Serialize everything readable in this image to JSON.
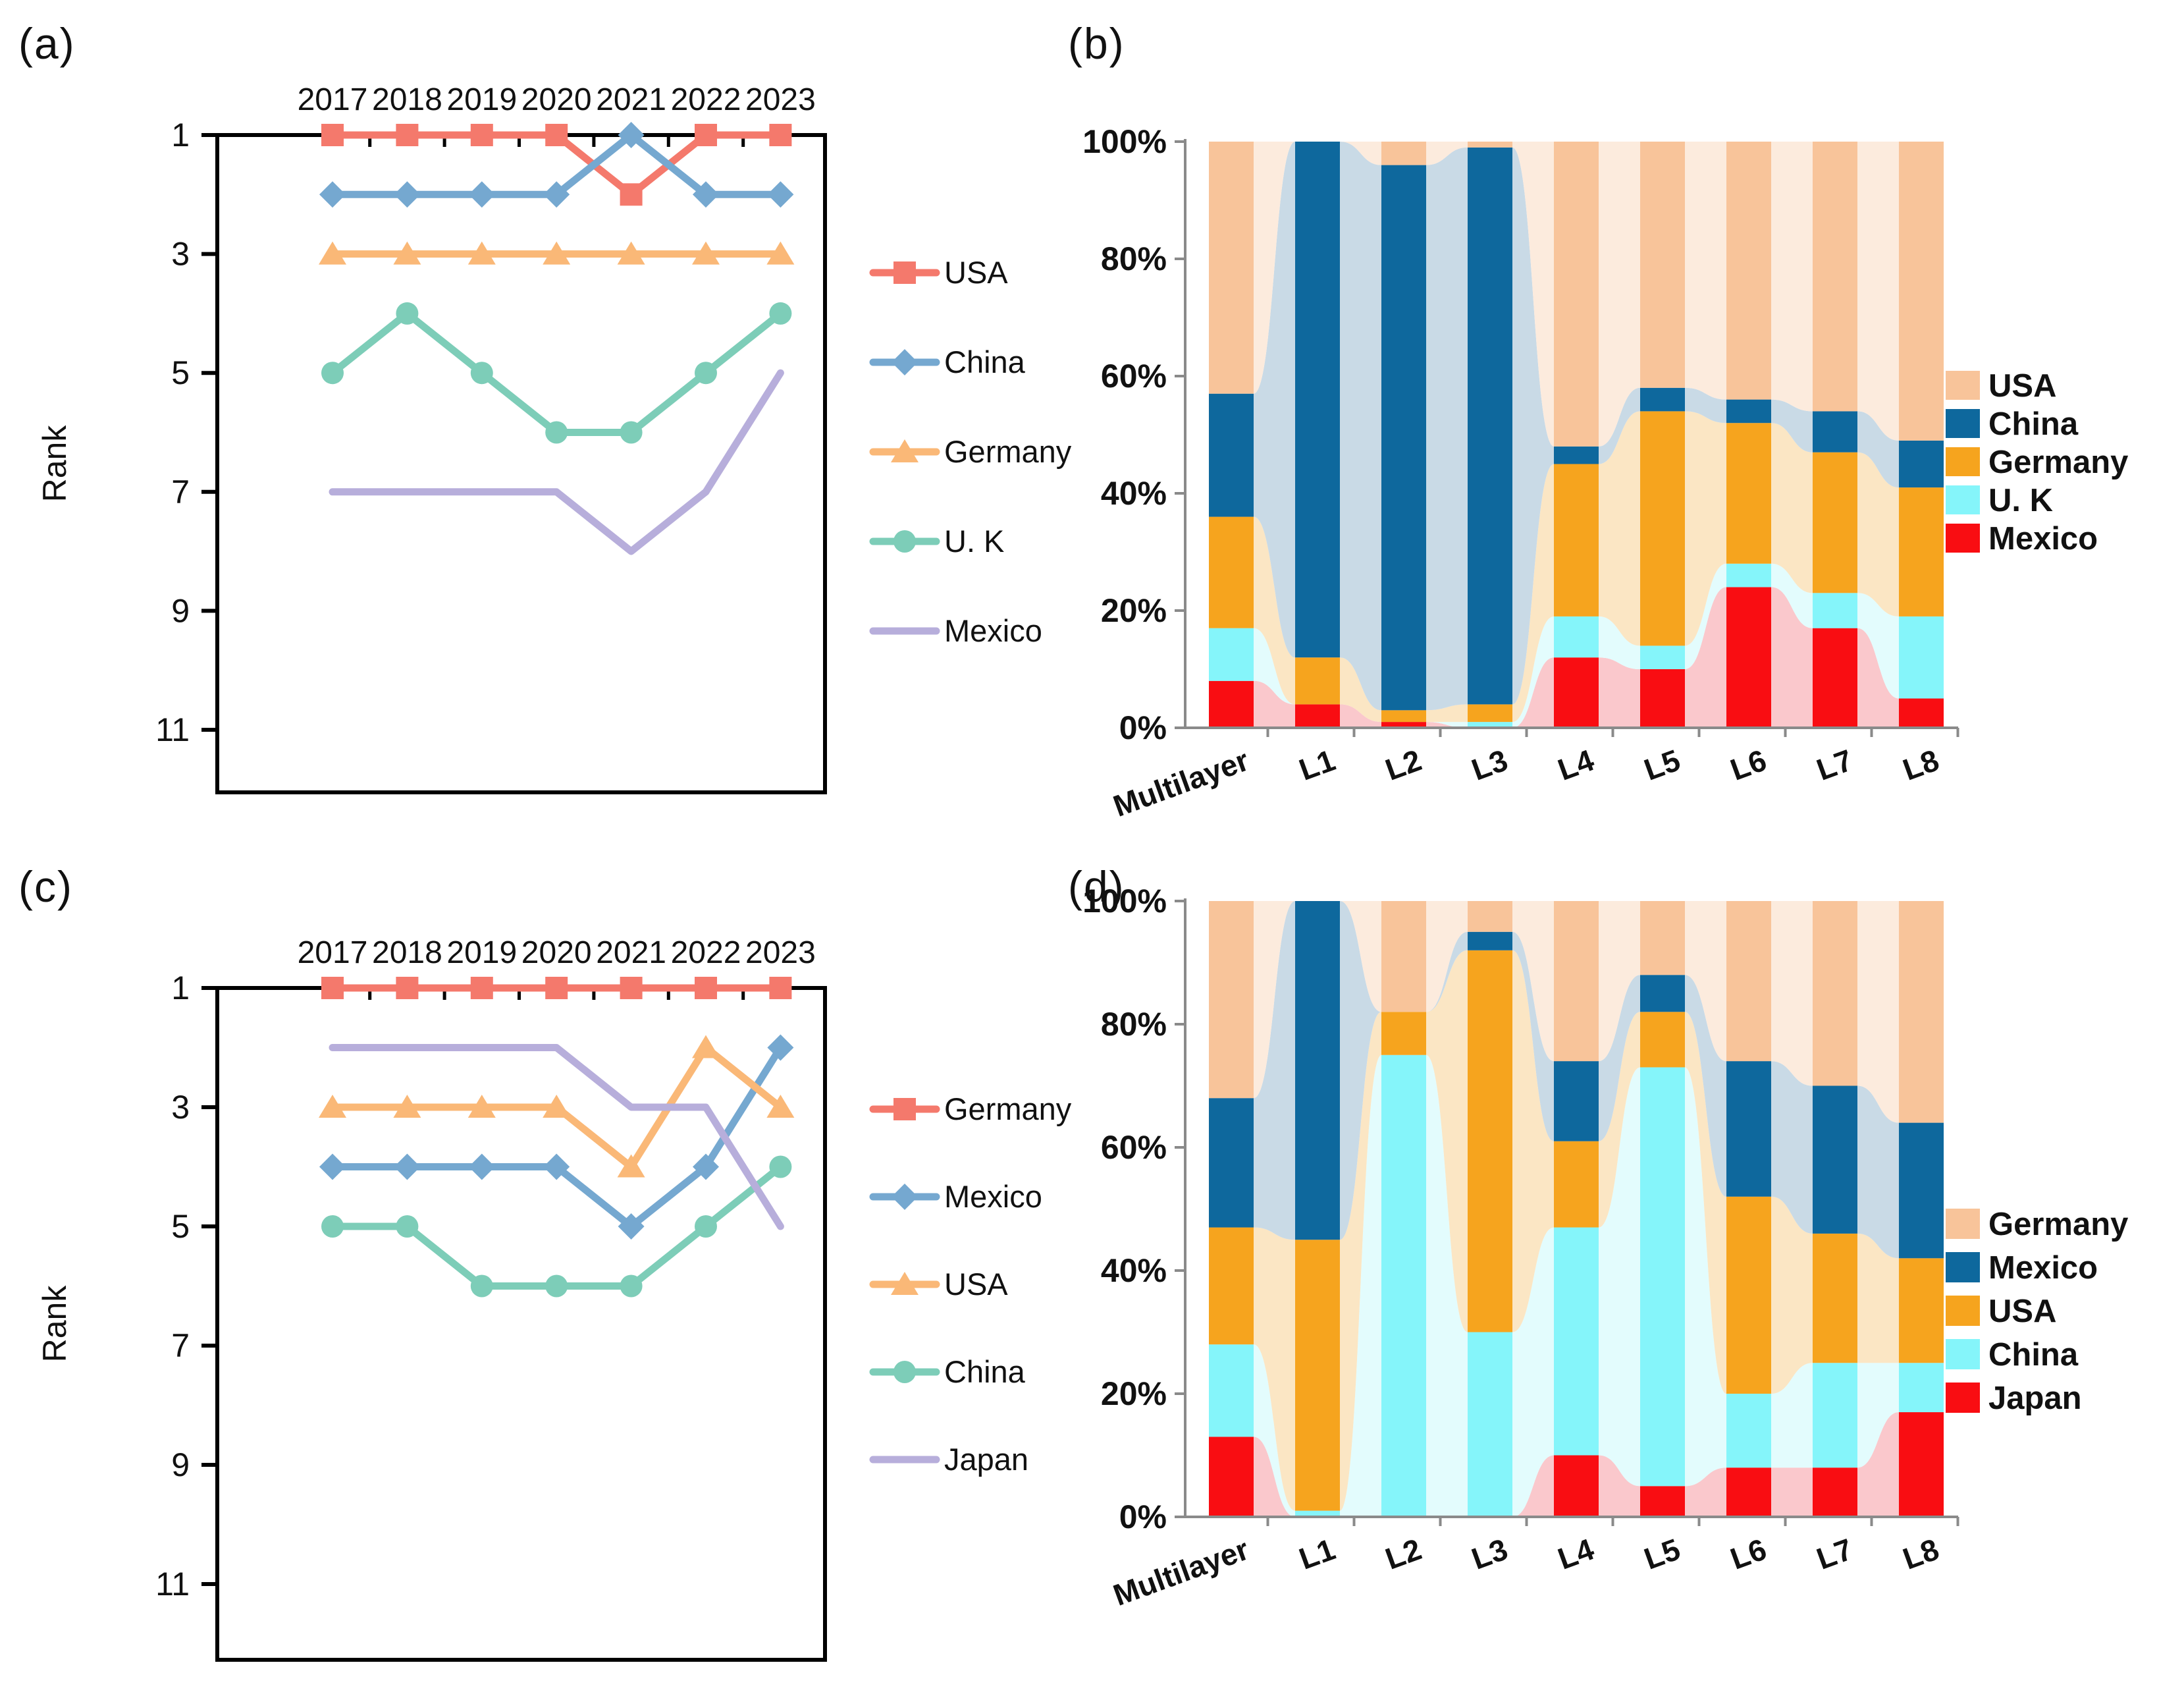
{
  "chart_data": [
    {
      "id": "a",
      "label": "(a)",
      "type": "line",
      "ylabel": "Rank",
      "x": [
        "2017",
        "2018",
        "2019",
        "2020",
        "2021",
        "2022",
        "2023"
      ],
      "yticks": [
        1,
        3,
        5,
        7,
        9,
        11
      ],
      "ylim": [
        1,
        12
      ],
      "y_inverted": true,
      "grid": false,
      "legend_position": "right",
      "series": [
        {
          "name": "USA",
          "color": "#F4796C",
          "marker": "square",
          "values": [
            1,
            1,
            1,
            1,
            2,
            1,
            1
          ]
        },
        {
          "name": "China",
          "color": "#75A8D0",
          "marker": "diamond",
          "values": [
            2,
            2,
            2,
            2,
            1,
            2,
            2
          ]
        },
        {
          "name": "Germany",
          "color": "#FAB877",
          "marker": "triangle",
          "values": [
            3,
            3,
            3,
            3,
            3,
            3,
            3
          ]
        },
        {
          "name": "U. K",
          "color": "#7DCDB8",
          "marker": "circle",
          "values": [
            5,
            4,
            5,
            6,
            6,
            5,
            4
          ]
        },
        {
          "name": "Mexico",
          "color": "#B7AEDB",
          "marker": "none",
          "values": [
            7,
            7,
            7,
            7,
            8,
            7,
            5
          ]
        }
      ]
    },
    {
      "id": "b",
      "label": "(b)",
      "type": "stacked-bar-flow",
      "unit": "%",
      "stack": "percent",
      "ylim": [
        0,
        100
      ],
      "yticks": [
        "100%",
        "80%",
        "60%",
        "40%",
        "20%",
        "0%"
      ],
      "categories": [
        "Multilayer",
        "L1",
        "L2",
        "L3",
        "L4",
        "L5",
        "L6",
        "L7",
        "L8"
      ],
      "legend_position": "right",
      "series": [
        {
          "name": "USA",
          "color": "#F8C49A",
          "flow_color": "#FCEBDD",
          "values": [
            43,
            0,
            4,
            1,
            52,
            42,
            44,
            46,
            51
          ]
        },
        {
          "name": "China",
          "color": "#0E689D",
          "flow_color": "#C9DAE6",
          "values": [
            21,
            88,
            93,
            95,
            3,
            4,
            4,
            7,
            8
          ]
        },
        {
          "name": "Germany",
          "color": "#F6A41E",
          "flow_color": "#FBE6C4",
          "values": [
            19,
            8,
            2,
            3,
            26,
            40,
            24,
            24,
            22
          ]
        },
        {
          "name": "U. K",
          "color": "#85F5FA",
          "flow_color": "#E3FCFD",
          "values": [
            9,
            0,
            0,
            1,
            7,
            4,
            4,
            6,
            14
          ]
        },
        {
          "name": "Mexico",
          "color": "#F90D12",
          "flow_color": "#FAC8CC",
          "values": [
            8,
            4,
            1,
            0,
            12,
            10,
            24,
            17,
            5
          ]
        }
      ]
    },
    {
      "id": "c",
      "label": "(c)",
      "type": "line",
      "ylabel": "Rank",
      "x": [
        "2017",
        "2018",
        "2019",
        "2020",
        "2021",
        "2022",
        "2023"
      ],
      "yticks": [
        1,
        3,
        5,
        7,
        9,
        11
      ],
      "ylim": [
        1,
        12
      ],
      "y_inverted": true,
      "grid": false,
      "legend_position": "right",
      "series": [
        {
          "name": "Germany",
          "color": "#F4796C",
          "marker": "square",
          "values": [
            1,
            1,
            1,
            1,
            1,
            1,
            1
          ]
        },
        {
          "name": "Mexico",
          "color": "#75A8D0",
          "marker": "diamond",
          "values": [
            4,
            4,
            4,
            4,
            5,
            4,
            2
          ]
        },
        {
          "name": "USA",
          "color": "#FAB877",
          "marker": "triangle",
          "values": [
            3,
            3,
            3,
            3,
            4,
            2,
            3
          ]
        },
        {
          "name": "China",
          "color": "#7DCDB8",
          "marker": "circle",
          "values": [
            5,
            5,
            6,
            6,
            6,
            5,
            4
          ]
        },
        {
          "name": "Japan",
          "color": "#B7AEDB",
          "marker": "none",
          "values": [
            2,
            2,
            2,
            2,
            3,
            3,
            5
          ]
        }
      ]
    },
    {
      "id": "d",
      "label": "(d)",
      "type": "stacked-bar-flow",
      "unit": "%",
      "stack": "percent",
      "ylim": [
        0,
        100
      ],
      "yticks": [
        "100%",
        "80%",
        "60%",
        "40%",
        "20%",
        "0%"
      ],
      "categories": [
        "Multilayer",
        "L1",
        "L2",
        "L3",
        "L4",
        "L5",
        "L6",
        "L7",
        "L8"
      ],
      "legend_position": "right",
      "series": [
        {
          "name": "Germany",
          "color": "#F8C49A",
          "flow_color": "#FCEBDD",
          "values": [
            32,
            0,
            18,
            5,
            26,
            12,
            26,
            30,
            36
          ]
        },
        {
          "name": "Mexico",
          "color": "#0E689D",
          "flow_color": "#C9DAE6",
          "values": [
            21,
            55,
            0,
            3,
            13,
            6,
            22,
            24,
            22
          ]
        },
        {
          "name": "USA",
          "color": "#F6A41E",
          "flow_color": "#FBE6C4",
          "values": [
            19,
            44,
            7,
            62,
            14,
            9,
            32,
            21,
            17
          ]
        },
        {
          "name": "China",
          "color": "#85F5FA",
          "flow_color": "#E3FCFD",
          "values": [
            15,
            1,
            75,
            30,
            37,
            68,
            12,
            17,
            8
          ]
        },
        {
          "name": "Japan",
          "color": "#F90D12",
          "flow_color": "#FAC8CC",
          "values": [
            13,
            0,
            0,
            0,
            10,
            5,
            8,
            8,
            17
          ]
        }
      ]
    }
  ]
}
